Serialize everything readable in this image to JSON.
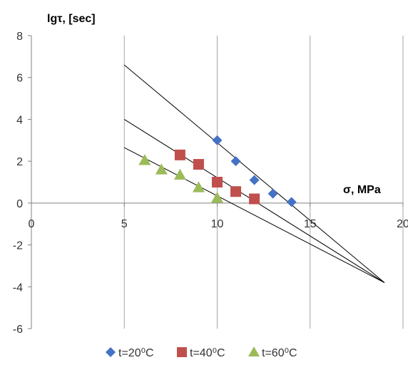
{
  "chart_data": {
    "type": "scatter",
    "title": "",
    "ylabel": "lgτ, [sec]",
    "xlabel": "σ, MPa",
    "xlim": [
      0,
      20
    ],
    "ylim": [
      -6,
      8
    ],
    "xticks": [
      0,
      5,
      10,
      15,
      20
    ],
    "yticks": [
      -6,
      -4,
      -2,
      0,
      2,
      4,
      6,
      8
    ],
    "xtick_labels": [
      "0",
      "5",
      "10",
      "15",
      "20"
    ],
    "ytick_labels": [
      "-6",
      "-4",
      "-2",
      "0",
      "2",
      "4",
      "6",
      "8"
    ],
    "grid": "vertical",
    "legend_position": "bottom",
    "series": [
      {
        "name": "t=20⁰C",
        "marker": "diamond",
        "color": "#4472C4",
        "points": [
          {
            "x": 10,
            "y": 3.0
          },
          {
            "x": 11,
            "y": 2.0
          },
          {
            "x": 12,
            "y": 1.1
          },
          {
            "x": 13,
            "y": 0.45
          },
          {
            "x": 14,
            "y": 0.05
          }
        ]
      },
      {
        "name": "t=40⁰C",
        "marker": "square",
        "color": "#C0504D",
        "points": [
          {
            "x": 8,
            "y": 2.3
          },
          {
            "x": 9,
            "y": 1.85
          },
          {
            "x": 10,
            "y": 1.0
          },
          {
            "x": 11,
            "y": 0.55
          },
          {
            "x": 12,
            "y": 0.2
          }
        ]
      },
      {
        "name": "t=60⁰C",
        "marker": "triangle",
        "color": "#9BBB59",
        "points": [
          {
            "x": 6.1,
            "y": 2.05
          },
          {
            "x": 7,
            "y": 1.6
          },
          {
            "x": 8,
            "y": 1.35
          },
          {
            "x": 9,
            "y": 0.75
          },
          {
            "x": 10,
            "y": 0.25
          }
        ]
      }
    ],
    "trend_lines": [
      {
        "from": {
          "x": 5.0,
          "y": 6.6
        },
        "to": {
          "x": 19.0,
          "y": -3.8
        }
      },
      {
        "from": {
          "x": 5.0,
          "y": 4.0
        },
        "to": {
          "x": 19.0,
          "y": -3.8
        }
      },
      {
        "from": {
          "x": 5.0,
          "y": 2.65
        },
        "to": {
          "x": 19.0,
          "y": -3.8
        }
      }
    ],
    "colors": {
      "gridline": "#A6A6A6",
      "axis": "#808080",
      "trend_line": "#000000"
    }
  }
}
